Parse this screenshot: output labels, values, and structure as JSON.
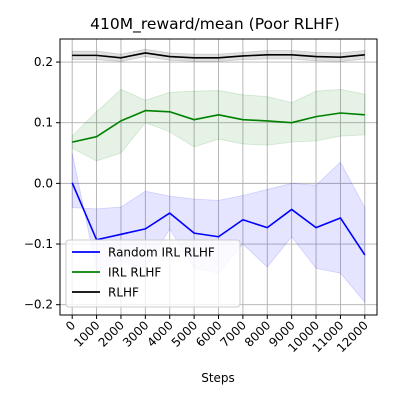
{
  "chart_data": {
    "type": "line",
    "title": "410M_reward/mean (Poor RLHF)",
    "xlabel": "Steps",
    "ylabel": "",
    "x": [
      0,
      1000,
      2000,
      3000,
      4000,
      5000,
      6000,
      7000,
      8000,
      9000,
      10000,
      11000,
      12000
    ],
    "x_tick_labels": [
      "0",
      "1000",
      "2000",
      "3000",
      "4000",
      "5000",
      "6000",
      "7000",
      "8000",
      "9000",
      "10000",
      "11000",
      "12000"
    ],
    "xlim": [
      -500,
      12500
    ],
    "ylim": [
      -0.217,
      0.238
    ],
    "y_ticks": [
      -0.2,
      -0.1,
      0.0,
      0.1,
      0.2
    ],
    "y_tick_labels": [
      "−0.2",
      "−0.1",
      "0.0",
      "0.1",
      "0.2"
    ],
    "grid": true,
    "legend_position": "lower-left",
    "series": [
      {
        "name": "Random IRL RLHF",
        "color": "#0000ff",
        "values": [
          0.001,
          -0.093,
          -0.084,
          -0.075,
          -0.049,
          -0.082,
          -0.088,
          -0.06,
          -0.073,
          -0.043,
          -0.073,
          -0.057,
          -0.118
        ],
        "band_upper": [
          -0.04,
          -0.042,
          -0.039,
          -0.013,
          -0.021,
          -0.026,
          -0.028,
          -0.02,
          -0.01,
          0.0,
          -0.003,
          0.035,
          -0.04
        ],
        "band_lower": [
          0.05,
          -0.143,
          -0.128,
          -0.14,
          -0.075,
          -0.14,
          -0.148,
          -0.1,
          -0.138,
          -0.088,
          -0.14,
          -0.148,
          -0.196
        ]
      },
      {
        "name": "IRL RLHF",
        "color": "#008000",
        "values": [
          0.068,
          0.077,
          0.103,
          0.12,
          0.118,
          0.105,
          0.113,
          0.105,
          0.103,
          0.1,
          0.11,
          0.116,
          0.113
        ],
        "band_upper": [
          0.078,
          0.118,
          0.155,
          0.137,
          0.15,
          0.152,
          0.153,
          0.146,
          0.143,
          0.133,
          0.152,
          0.155,
          0.147
        ],
        "band_lower": [
          0.058,
          0.037,
          0.05,
          0.1,
          0.085,
          0.06,
          0.073,
          0.065,
          0.063,
          0.068,
          0.07,
          0.078,
          0.08
        ]
      },
      {
        "name": "RLHF",
        "color": "#000000",
        "values": [
          0.211,
          0.211,
          0.207,
          0.215,
          0.209,
          0.207,
          0.207,
          0.21,
          0.212,
          0.212,
          0.209,
          0.208,
          0.212
        ],
        "band_upper": [
          0.218,
          0.218,
          0.213,
          0.221,
          0.215,
          0.213,
          0.213,
          0.216,
          0.219,
          0.219,
          0.216,
          0.215,
          0.219
        ],
        "band_lower": [
          0.204,
          0.204,
          0.201,
          0.209,
          0.203,
          0.201,
          0.201,
          0.204,
          0.205,
          0.205,
          0.202,
          0.201,
          0.205
        ]
      }
    ]
  }
}
